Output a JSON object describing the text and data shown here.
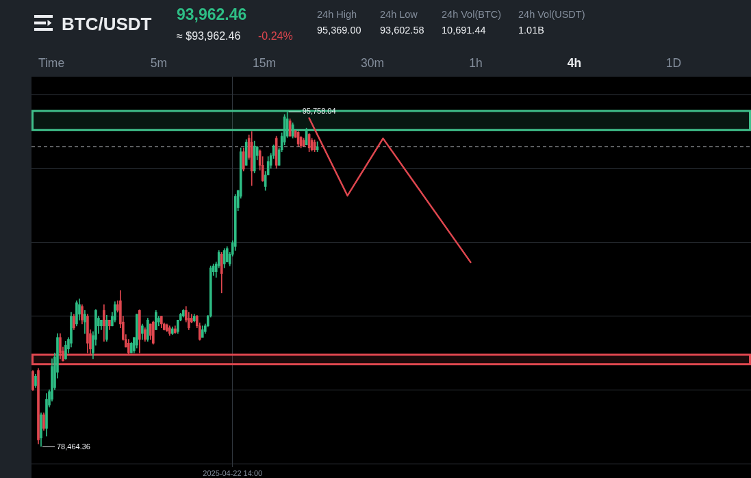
{
  "chart_data": {
    "type": "candlestick",
    "title": "BTC/USDT",
    "subtitle": "93,962.46",
    "annotations": [
      "≈ $93,962.46",
      "-0.24%",
      "24h High",
      "95,369.00",
      "24h Low",
      "93,602.58",
      "24h Vol(BTC)",
      "10,691.44",
      "24h Vol(USDT)",
      "1.01B",
      "Time",
      "5m",
      "15m",
      "30m",
      "1h",
      "4h",
      "1D",
      "78,464.36",
      {
        "text": "95,758.04",
        "y": 95758.04
      }
    ],
    "categories": [
      null,
      null,
      null,
      null,
      null,
      null,
      null,
      null,
      null,
      null,
      null,
      null,
      null,
      null,
      null,
      null,
      null,
      null,
      null,
      null,
      null,
      null,
      null,
      null,
      null,
      null,
      null,
      null,
      null,
      null,
      null,
      null,
      null,
      null,
      null,
      null,
      null,
      null,
      null,
      null,
      null,
      null,
      null,
      null,
      null,
      null,
      null,
      null,
      null,
      null,
      null,
      null,
      null,
      null,
      null,
      null,
      null,
      null,
      null,
      null,
      null,
      null,
      null,
      null,
      null,
      null,
      null,
      null,
      null,
      null,
      null,
      null,
      null,
      "2025-04-22 14:00",
      null,
      null,
      null,
      null,
      null,
      null,
      null,
      null,
      null,
      null,
      null,
      null,
      null,
      null,
      null,
      null,
      null,
      null,
      null,
      null,
      null,
      null,
      null,
      null,
      null,
      null,
      null,
      null,
      null,
      null,
      null,
      null,
      null,
      null,
      null,
      null,
      null,
      null,
      null,
      null,
      null,
      null,
      null,
      null,
      null,
      null,
      null,
      null,
      null,
      null,
      null,
      null,
      null,
      null,
      null,
      null,
      null,
      null,
      null,
      null,
      null,
      null,
      null,
      null,
      null,
      null,
      null,
      null,
      null,
      null,
      null,
      null,
      null,
      null,
      null,
      null,
      null,
      null,
      null,
      null,
      null,
      null,
      null,
      null,
      null,
      null,
      null,
      null,
      null,
      null,
      null,
      null,
      null,
      null,
      null,
      null,
      null,
      null,
      null,
      null,
      null,
      null,
      null,
      null,
      null,
      null,
      null,
      null,
      null,
      null,
      null,
      null,
      null,
      null,
      null,
      null,
      null,
      null,
      null,
      null,
      null,
      null,
      null,
      null,
      null,
      null,
      null,
      null,
      null,
      null,
      null,
      null,
      null,
      null,
      null,
      null,
      null,
      null,
      null,
      null,
      null,
      null,
      null,
      null,
      null,
      null,
      null,
      null,
      null,
      null,
      null,
      null,
      null,
      null,
      null,
      null,
      null,
      null,
      null,
      null,
      null,
      null,
      null,
      null,
      null,
      null,
      null,
      null,
      null,
      null,
      null,
      null,
      null,
      null,
      null,
      null,
      null,
      null,
      null,
      null,
      null,
      null,
      null,
      null,
      null,
      null,
      null,
      null,
      null
    ],
    "ohlc": [
      [
        82340,
        82400,
        81350,
        81400
      ],
      [
        81600,
        82200,
        81500,
        82100
      ],
      [
        82400,
        82500,
        78600,
        78800
      ],
      [
        78900,
        80200,
        78464.36,
        80100
      ],
      [
        80100,
        80200,
        79300,
        79400
      ],
      [
        79400,
        81200,
        79000,
        80900
      ],
      [
        80600,
        81400,
        80500,
        81300
      ],
      [
        80900,
        83000,
        80800,
        82600
      ],
      [
        81500,
        83300,
        81400,
        83100
      ],
      [
        82300,
        84300,
        82000,
        84100
      ],
      [
        84100,
        84300,
        83000,
        83300
      ],
      [
        83400,
        83600,
        82870,
        82900
      ],
      [
        83000,
        83900,
        82970,
        83700
      ],
      [
        83500,
        84100,
        83300,
        84000
      ],
      [
        83800,
        85400,
        83600,
        85200
      ],
      [
        85200,
        85300,
        84500,
        84600
      ],
      [
        84800,
        86000,
        84700,
        85900
      ],
      [
        85300,
        86100,
        85000,
        85800
      ],
      [
        85700,
        85800,
        84800,
        85000
      ],
      [
        84900,
        85500,
        84300,
        85300
      ],
      [
        85200,
        85300,
        83300,
        83800
      ],
      [
        84300,
        84500,
        83200,
        83500
      ],
      [
        83300,
        84400,
        83000,
        84200
      ],
      [
        84000,
        85550,
        83700,
        85500
      ],
      [
        84700,
        85200,
        84300,
        85100
      ],
      [
        84700,
        85000,
        84500,
        85000
      ],
      [
        85500,
        85800,
        83900,
        84700
      ],
      [
        84000,
        85250,
        83900,
        85000
      ],
      [
        85000,
        85000,
        84500,
        84700
      ],
      [
        84700,
        85400,
        84700,
        85200
      ],
      [
        85000,
        85950,
        84900,
        85800
      ],
      [
        85800,
        86000,
        85400,
        85500
      ],
      [
        86000,
        86520,
        84600,
        84800
      ],
      [
        84900,
        85200,
        83950,
        84000
      ],
      [
        84000,
        84250,
        83600,
        83600
      ],
      [
        83800,
        84000,
        83250,
        83300
      ],
      [
        83300,
        83850,
        83300,
        83800
      ],
      [
        83400,
        84100,
        83300,
        84100
      ],
      [
        83700,
        85300,
        83550,
        85300
      ],
      [
        85500,
        85530,
        83300,
        84000
      ],
      [
        84300,
        84800,
        84000,
        84700
      ],
      [
        84500,
        84600,
        83900,
        84000
      ],
      [
        84000,
        85100,
        83900,
        85000
      ],
      [
        84800,
        84800,
        84000,
        84200
      ],
      [
        84900,
        84950,
        83750,
        83800
      ],
      [
        84500,
        85500,
        84500,
        85400
      ],
      [
        84900,
        85200,
        84700,
        85100
      ],
      [
        85200,
        85200,
        84600,
        84800
      ],
      [
        84800,
        84850,
        84480,
        84500
      ],
      [
        84750,
        84800,
        84400,
        84450
      ],
      [
        84600,
        84700,
        84200,
        84300
      ],
      [
        84300,
        84650,
        84250,
        84550
      ],
      [
        84550,
        84700,
        84300,
        84350
      ],
      [
        84400,
        85000,
        84300,
        85000
      ],
      [
        85000,
        85350,
        84950,
        85300
      ],
      [
        85200,
        85550,
        85150,
        85500
      ],
      [
        85500,
        85700,
        84900,
        85000
      ],
      [
        85100,
        85400,
        84500,
        84600
      ],
      [
        85100,
        85300,
        84850,
        84900
      ],
      [
        84950,
        85300,
        84900,
        85200
      ],
      [
        85200,
        85250,
        84600,
        84700
      ],
      [
        84700,
        84850,
        83950,
        84000
      ],
      [
        84100,
        84700,
        84100,
        84500
      ],
      [
        84400,
        84800,
        84300,
        84700
      ],
      [
        84700,
        85250,
        84650,
        85200
      ],
      [
        85200,
        87800,
        85150,
        87700
      ],
      [
        87500,
        87900,
        87300,
        87800
      ],
      [
        87500,
        88000,
        87200,
        87900
      ],
      [
        87800,
        88600,
        87700,
        88500
      ],
      [
        88400,
        88500,
        86400,
        87400
      ],
      [
        87900,
        88700,
        87700,
        88600
      ],
      [
        88000,
        88800,
        88000,
        88700
      ],
      [
        87900,
        88500,
        87800,
        88400
      ],
      [
        88400,
        89100,
        88300,
        89000
      ],
      [
        88800,
        91500,
        88600,
        91400
      ],
      [
        90800,
        91700,
        90650,
        91700
      ],
      [
        91400,
        93900,
        91300,
        93700
      ],
      [
        93700,
        93900,
        92700,
        92800
      ],
      [
        93000,
        94330,
        93000,
        94200
      ],
      [
        94400,
        94570,
        93300,
        93400
      ],
      [
        94200,
        94750,
        91950,
        92700
      ],
      [
        92700,
        94250,
        92600,
        94000
      ],
      [
        93500,
        93980,
        93280,
        93950
      ],
      [
        93750,
        93800,
        92750,
        93000
      ],
      [
        93000,
        93450,
        92160,
        92200
      ],
      [
        91900,
        92680,
        91700,
        92500
      ],
      [
        92500,
        93450,
        92500,
        93200
      ],
      [
        93000,
        93620,
        92850,
        93500
      ],
      [
        93500,
        94050,
        93350,
        94000
      ],
      [
        94400,
        94500,
        92850,
        93000
      ],
      [
        93000,
        93900,
        93000,
        93800
      ],
      [
        93800,
        94680,
        93700,
        94500
      ],
      [
        94200,
        95620,
        94050,
        95500
      ],
      [
        94500,
        95758.04,
        94430,
        95400
      ],
      [
        95300,
        95400,
        94500,
        94500
      ],
      [
        94500,
        95200,
        94400,
        95100
      ],
      [
        94780,
        94800,
        94430,
        94450
      ],
      [
        94700,
        94750,
        93980,
        94100
      ],
      [
        94450,
        94500,
        93900,
        94000
      ],
      [
        94300,
        94400,
        93980,
        94000
      ],
      [
        94050,
        94920,
        94050,
        94800
      ],
      [
        94600,
        94650,
        93700,
        93900
      ],
      [
        94300,
        94400,
        93730,
        93800
      ],
      [
        94200,
        94320,
        93700,
        93800
      ],
      [
        93800,
        94220,
        93700,
        93960
      ],
      null,
      null,
      null,
      null,
      null,
      null,
      null,
      null,
      null,
      null,
      null,
      null,
      null,
      null,
      null,
      null,
      null,
      null,
      null,
      null,
      null,
      null,
      null,
      null,
      null,
      null,
      null,
      null,
      null,
      null,
      null,
      null,
      null,
      null,
      null,
      null,
      null,
      null,
      null,
      null,
      null,
      null,
      null,
      null,
      null,
      null,
      null,
      null,
      null,
      null,
      null,
      null,
      null,
      null,
      null,
      null,
      null,
      null,
      null,
      null,
      null,
      null,
      null,
      null,
      null,
      null,
      null,
      null,
      null,
      null,
      null,
      null,
      null,
      null,
      null,
      null,
      null,
      null,
      null,
      null,
      null,
      null,
      null,
      null,
      null,
      null,
      null,
      null,
      null,
      null,
      null,
      null,
      null,
      null,
      null,
      null,
      null,
      null,
      null,
      null,
      null,
      null,
      null,
      null,
      null,
      null,
      null,
      null,
      null,
      null,
      null,
      null,
      null,
      null,
      null,
      null,
      null,
      null,
      null,
      null,
      null,
      null,
      null,
      null,
      null,
      null,
      null,
      null,
      null,
      null,
      null,
      null,
      null,
      null,
      null,
      null,
      null,
      null,
      null,
      null,
      null,
      null,
      null,
      null,
      null,
      null,
      null,
      null,
      null,
      null,
      null,
      null,
      null,
      null,
      null,
      null,
      null,
      null
    ],
    "series": [
      {
        "type": "line",
        "color": "#e0474f",
        "values": [
          null,
          null,
          null,
          null,
          null,
          null,
          null,
          null,
          null,
          null,
          null,
          null,
          null,
          null,
          null,
          null,
          null,
          null,
          null,
          null,
          null,
          null,
          null,
          null,
          null,
          null,
          null,
          null,
          null,
          null,
          null,
          null,
          null,
          null,
          null,
          null,
          null,
          null,
          null,
          null,
          null,
          null,
          null,
          null,
          null,
          null,
          null,
          null,
          null,
          null,
          null,
          null,
          null,
          null,
          null,
          null,
          null,
          null,
          null,
          null,
          null,
          null,
          null,
          null,
          null,
          null,
          null,
          null,
          null,
          null,
          null,
          null,
          null,
          null,
          null,
          null,
          null,
          null,
          null,
          null,
          null,
          null,
          null,
          null,
          null,
          null,
          null,
          null,
          null,
          null,
          null,
          null,
          null,
          null,
          null,
          null,
          null,
          null,
          null,
          null,
          null,
          95440,
          null,
          null,
          null,
          null,
          null,
          null,
          null,
          null,
          null,
          null,
          null,
          null,
          null,
          91430,
          null,
          null,
          null,
          null,
          null,
          null,
          null,
          null,
          null,
          null,
          null,
          null,
          94390,
          null,
          null,
          null,
          null,
          null,
          null,
          null,
          null,
          null,
          null,
          null,
          null,
          null,
          null,
          null,
          null,
          null,
          null,
          null,
          null,
          null,
          null,
          null,
          null,
          null,
          null,
          null,
          null,
          null,
          null,
          null,
          87990,
          null,
          null,
          null,
          null,
          null,
          null,
          null,
          null,
          null,
          null,
          null,
          null,
          null,
          null,
          null,
          null,
          null,
          null,
          null,
          null,
          null,
          null,
          null,
          null,
          null,
          null,
          null,
          null,
          null,
          null,
          null,
          null,
          null,
          null,
          null,
          null,
          null,
          null,
          null,
          null,
          null,
          null,
          null,
          null,
          null,
          null,
          null,
          null,
          null,
          null,
          null,
          null,
          null,
          null,
          null,
          null,
          null,
          null,
          null,
          null,
          null,
          null,
          null,
          null,
          null,
          null,
          null,
          null,
          null,
          null,
          null,
          null,
          null,
          null,
          null,
          null,
          null,
          null,
          null,
          null,
          null,
          null,
          null,
          null,
          null,
          null,
          null,
          null,
          null,
          null,
          null,
          null,
          null,
          null,
          null,
          null,
          null,
          null,
          null,
          null,
          null,
          null
        ]
      }
    ],
    "ylim": [
      77400,
      97580
    ],
    "yticks": [
      {
        "value": 77560,
        "label": null
      },
      {
        "value": 81375,
        "label": null
      },
      {
        "value": 85190,
        "label": null
      },
      {
        "value": 89005,
        "label": null
      },
      {
        "value": 92820,
        "label": null
      },
      {
        "value": 96635,
        "label": null
      }
    ],
    "bands": [
      {
        "axis": "y",
        "from": 94830,
        "to": 95810,
        "color": "#3fbf8a"
      },
      {
        "axis": "y",
        "from": 82715,
        "to": 83205,
        "color": "#e0474f"
      }
    ],
    "ref_lines": [
      {
        "axis": "y",
        "value": 93960,
        "color": "#c8ccd2",
        "line_style": "dashed"
      }
    ],
    "grid": true,
    "tick_labels": "x",
    "marker": "none"
  }
}
